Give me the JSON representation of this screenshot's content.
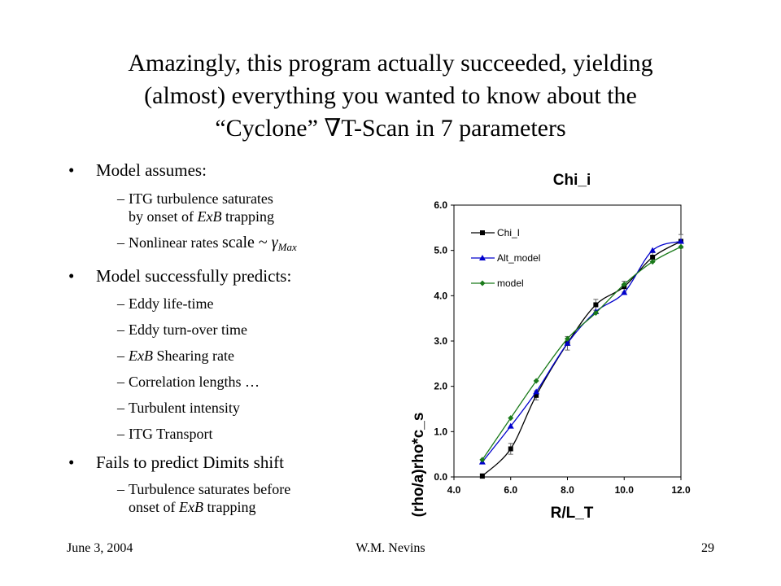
{
  "title": {
    "line1": "Amazingly, this program actually succeeded, yielding",
    "line2": "(almost) everything you wanted to know about the",
    "line3": "“Cyclone” ∇T-Scan in 7 parameters"
  },
  "bullets": [
    {
      "text": "Model assumes:",
      "sub": [
        {
          "line1_pre": "ITG turbulence saturates",
          "line2_pre": "by onset of ",
          "line2_em": "ExB",
          "line2_post": " trapping"
        },
        {
          "pre": "Nonlinear rates ",
          "scale": "scale ~ ",
          "gamma": "γ",
          "sub": "Max"
        }
      ]
    },
    {
      "text": "Model successfully predicts:",
      "items": [
        "Eddy life-time",
        "Eddy turn-over time",
        "ExB Shearing rate",
        "Correlation lengths …",
        "Turbulent intensity",
        "ITG Transport"
      ],
      "item3_em": "ExB",
      "item3_post": " Shearing rate"
    },
    {
      "text": "Fails to predict Dimits shift",
      "sub1_line1": "Turbulence saturates before",
      "sub1_line2_pre": "onset of ",
      "sub1_line2_em": "ExB",
      "sub1_line2_post": " trapping"
    }
  ],
  "footer": {
    "date": "June 3, 2004",
    "author": "W.M. Nevins",
    "page": "29"
  },
  "chart_data": {
    "type": "line",
    "title": "Chi_i",
    "xlabel": "R/L_T",
    "ylabel": "(rho/a)rho*c_s",
    "xlim": [
      4.0,
      12.0
    ],
    "ylim": [
      0.0,
      6.0
    ],
    "xticks": [
      "4.0",
      "6.0",
      "8.0",
      "10.0",
      "12.0"
    ],
    "yticks": [
      "0.0",
      "1.0",
      "2.0",
      "3.0",
      "4.0",
      "5.0",
      "6.0"
    ],
    "legend_position": "upper-left",
    "series": [
      {
        "name": "Chi_I",
        "color": "#000000",
        "marker": "square",
        "x": [
          5.0,
          6.0,
          6.9,
          8.0,
          9.0,
          10.0,
          11.0,
          12.0
        ],
        "y": [
          0.02,
          0.62,
          1.8,
          2.95,
          3.8,
          4.2,
          4.85,
          5.2
        ],
        "err": [
          0.05,
          0.12,
          0.1,
          0.15,
          0.12,
          0.12,
          0.1,
          0.15
        ]
      },
      {
        "name": "Alt_model",
        "color": "#0000cc",
        "marker": "triangle",
        "x": [
          5.0,
          6.0,
          6.9,
          8.0,
          9.0,
          10.0,
          11.0,
          12.0
        ],
        "y": [
          0.33,
          1.12,
          1.88,
          2.95,
          3.65,
          4.07,
          5.0,
          5.2
        ]
      },
      {
        "name": "model",
        "color": "#1a7a1a",
        "marker": "diamond",
        "x": [
          5.0,
          6.0,
          6.9,
          8.0,
          9.0,
          10.0,
          11.0,
          12.0
        ],
        "y": [
          0.38,
          1.3,
          2.12,
          3.05,
          3.62,
          4.25,
          4.75,
          5.08
        ]
      }
    ]
  }
}
